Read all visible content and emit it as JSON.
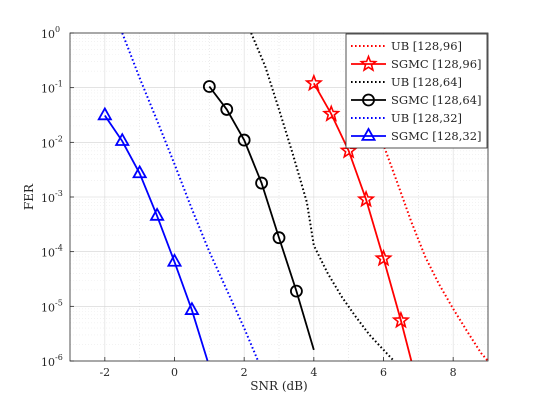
{
  "chart_data": {
    "type": "line",
    "xlabel": "SNR (dB)",
    "ylabel": "FER",
    "xlim": [
      -3,
      9
    ],
    "ylim": [
      1e-06,
      1
    ],
    "yscale": "log",
    "grid": true,
    "legend_position": "top-right",
    "xticks": [
      -2,
      0,
      2,
      4,
      6,
      8
    ],
    "xtick_labels": [
      "-2",
      "0",
      "2",
      "4",
      "6",
      "8"
    ],
    "yticks": [
      1,
      0.1,
      0.01,
      0.001,
      0.0001,
      1e-05,
      1e-06
    ],
    "ytick_labels": [
      {
        "base": "10",
        "exp": "0"
      },
      {
        "base": "10",
        "exp": "-1"
      },
      {
        "base": "10",
        "exp": "-2"
      },
      {
        "base": "10",
        "exp": "-3"
      },
      {
        "base": "10",
        "exp": "-4"
      },
      {
        "base": "10",
        "exp": "-5"
      },
      {
        "base": "10",
        "exp": "-6"
      }
    ],
    "series": [
      {
        "name": "UB [128,96]",
        "color": "#ff0000",
        "style": "dotted",
        "marker": "none",
        "x": [
          5.2,
          5.6,
          6.0,
          6.4,
          6.8,
          7.2,
          7.6,
          8.0,
          8.4,
          8.8,
          9.0
        ],
        "y": [
          0.13,
          0.04,
          0.009,
          0.0018,
          0.00035,
          8e-05,
          2.5e-05,
          9e-06,
          3.5e-06,
          1.4e-06,
          1e-06
        ]
      },
      {
        "name": "SGMC [128,96]",
        "color": "#ff0000",
        "style": "solid",
        "marker": "star",
        "x": [
          4.0,
          4.5,
          5.0,
          5.5,
          6.0,
          6.5,
          6.8
        ],
        "y": [
          0.12,
          0.033,
          0.007,
          0.0009,
          7.5e-05,
          5.5e-06,
          1e-06
        ]
      },
      {
        "name": "UB [128,64]",
        "color": "#000000",
        "style": "dotted",
        "marker": "none",
        "x": [
          2.2,
          2.6,
          3.0,
          3.4,
          3.8,
          4.0,
          4.4,
          4.8,
          5.2,
          5.6,
          6.0,
          6.3
        ],
        "y": [
          1.0,
          0.25,
          0.04,
          0.006,
          0.0008,
          0.00013,
          4e-05,
          1.5e-05,
          6.5e-06,
          3e-06,
          1.6e-06,
          1e-06
        ]
      },
      {
        "name": "SGMC [128,64]",
        "color": "#000000",
        "style": "solid",
        "marker": "circle",
        "x": [
          1.0,
          1.5,
          2.0,
          2.5,
          3.0,
          3.5,
          4.0
        ],
        "y": [
          0.105,
          0.04,
          0.011,
          0.0018,
          0.00018,
          1.9e-05,
          1.6e-06
        ]
      },
      {
        "name": "UB [128,32]",
        "color": "#0000ff",
        "style": "dotted",
        "marker": "none",
        "x": [
          -1.5,
          -1.0,
          -0.5,
          0.0,
          0.5,
          1.0,
          1.5,
          2.0,
          2.4
        ],
        "y": [
          1.0,
          0.15,
          0.025,
          0.004,
          0.0006,
          0.0001,
          2e-05,
          4e-06,
          1e-06
        ]
      },
      {
        "name": "SGMC [128,32]",
        "color": "#0000ff",
        "style": "solid",
        "marker": "triangle",
        "x": [
          -2.0,
          -1.5,
          -1.0,
          -0.5,
          0.0,
          0.5,
          0.95
        ],
        "y": [
          0.031,
          0.0105,
          0.0027,
          0.00045,
          6.5e-05,
          8.5e-06,
          1e-06
        ]
      }
    ]
  }
}
